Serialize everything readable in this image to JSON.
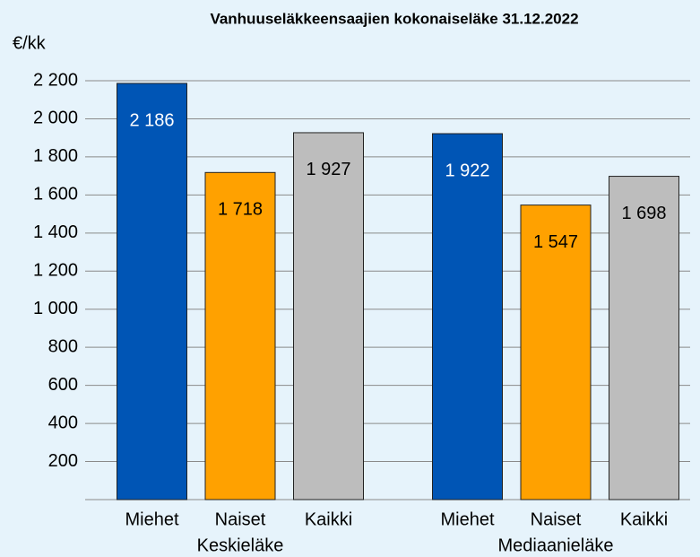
{
  "chart_data": {
    "type": "bar",
    "title": "Vanhuuseläkkeensaajien kokonaiseläke 31.12.2022",
    "y_label": "€/kk",
    "categories": [
      "Keskieläke",
      "Mediaanieläke"
    ],
    "series": [
      {
        "name": "Miehet",
        "color": "#0055b5",
        "label_color": "#ffffff",
        "values": [
          2186,
          1922
        ],
        "value_labels": [
          "2 186",
          "1 922"
        ]
      },
      {
        "name": "Naiset",
        "color": "#ffa100",
        "label_color": "#000000",
        "values": [
          1718,
          1547
        ],
        "value_labels": [
          "1 718",
          "1 547"
        ]
      },
      {
        "name": "Kaikki",
        "color": "#bdbdbd",
        "label_color": "#000000",
        "values": [
          1927,
          1698
        ],
        "value_labels": [
          "1 927",
          "1 698"
        ]
      }
    ],
    "ylim": [
      0,
      2200
    ],
    "yticks": [
      200,
      400,
      600,
      800,
      {
        "value": 1000,
        "label": "1 000"
      },
      {
        "value": 1200,
        "label": "1 200"
      },
      {
        "value": 1400,
        "label": "1 400"
      },
      {
        "value": 1600,
        "label": "1 600"
      },
      {
        "value": 1800,
        "label": "1 800"
      },
      {
        "value": 2000,
        "label": "2 000"
      },
      {
        "value": 2200,
        "label": "2 200"
      }
    ],
    "grid": true
  }
}
